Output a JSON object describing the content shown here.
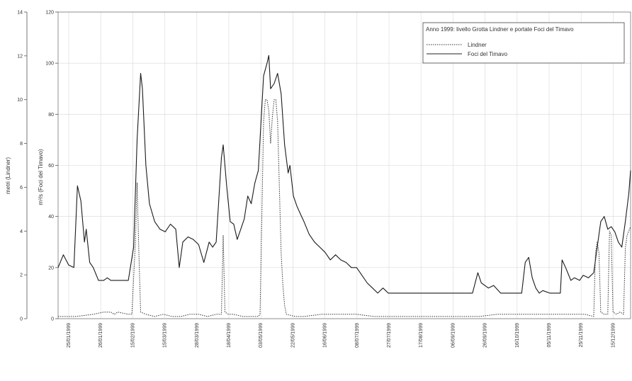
{
  "chart_data": {
    "type": "line",
    "legend": {
      "title": "Anno 1999: livello Grotta Lindner e portate Foci del Timavo",
      "placement": "top-right",
      "entries": [
        "Lindner",
        "Foci del Timavo"
      ]
    },
    "y_left": {
      "label": "metri (Lindner)",
      "ylim": [
        0,
        14
      ],
      "ticks": [
        0,
        2,
        4,
        6,
        8,
        10,
        12,
        14
      ]
    },
    "y_right": {
      "label": "m³/s (Foci del Timavo)",
      "ylim": [
        0,
        120
      ],
      "ticks": [
        0,
        20,
        40,
        60,
        80,
        100,
        120
      ]
    },
    "x_dates": [
      "25/01/1999",
      "26/01/1999",
      "15/02/1999",
      "15/03/1999",
      "28/03/1999",
      "18/04/1999",
      "03/05/1999",
      "22/05/1999",
      "16/06/1999",
      "08/07/1999",
      "27/07/1999",
      "17/08/1999",
      "06/09/1999",
      "26/09/1999",
      "16/10/1999",
      "05/11/1999",
      "25/11/1999",
      "15/12/1999"
    ],
    "grid": true,
    "series": [
      {
        "name": "Foci del Timavo",
        "axis": "right",
        "style": "solid",
        "points": [
          [
            0,
            20
          ],
          [
            3,
            25
          ],
          [
            6,
            21
          ],
          [
            9,
            20
          ],
          [
            11,
            52
          ],
          [
            13,
            46
          ],
          [
            15,
            30
          ],
          [
            16,
            35
          ],
          [
            18,
            22
          ],
          [
            20,
            20
          ],
          [
            23,
            15
          ],
          [
            26,
            15
          ],
          [
            28,
            16
          ],
          [
            30,
            15
          ],
          [
            40,
            15
          ],
          [
            43,
            28
          ],
          [
            45,
            70
          ],
          [
            47,
            96
          ],
          [
            48,
            90
          ],
          [
            50,
            60
          ],
          [
            52,
            45
          ],
          [
            55,
            38
          ],
          [
            58,
            35
          ],
          [
            61,
            34
          ],
          [
            64,
            37
          ],
          [
            67,
            35
          ],
          [
            69,
            20
          ],
          [
            71,
            30
          ],
          [
            74,
            32
          ],
          [
            77,
            31
          ],
          [
            80,
            29
          ],
          [
            83,
            22
          ],
          [
            86,
            30
          ],
          [
            88,
            28
          ],
          [
            90,
            30
          ],
          [
            93,
            63
          ],
          [
            94,
            68
          ],
          [
            96,
            52
          ],
          [
            98,
            38
          ],
          [
            100,
            37
          ],
          [
            102,
            31
          ],
          [
            104,
            35
          ],
          [
            106,
            39
          ],
          [
            108,
            48
          ],
          [
            110,
            45
          ],
          [
            112,
            53
          ],
          [
            114,
            58
          ],
          [
            115,
            70
          ],
          [
            117,
            95
          ],
          [
            119,
            100
          ],
          [
            120,
            103
          ],
          [
            121,
            90
          ],
          [
            123,
            92
          ],
          [
            125,
            96
          ],
          [
            127,
            88
          ],
          [
            129,
            68
          ],
          [
            131,
            57
          ],
          [
            132,
            60
          ],
          [
            134,
            48
          ],
          [
            136,
            44
          ],
          [
            138,
            41
          ],
          [
            140,
            38
          ],
          [
            143,
            33
          ],
          [
            146,
            30
          ],
          [
            149,
            28
          ],
          [
            152,
            26
          ],
          [
            155,
            23
          ],
          [
            158,
            25
          ],
          [
            161,
            23
          ],
          [
            164,
            22
          ],
          [
            167,
            20
          ],
          [
            170,
            20
          ],
          [
            173,
            17
          ],
          [
            176,
            14
          ],
          [
            179,
            12
          ],
          [
            182,
            10
          ],
          [
            185,
            12
          ],
          [
            188,
            10
          ],
          [
            192,
            10
          ],
          [
            220,
            10
          ],
          [
            228,
            10
          ],
          [
            236,
            10
          ],
          [
            239,
            18
          ],
          [
            241,
            14
          ],
          [
            243,
            13
          ],
          [
            245,
            12
          ],
          [
            248,
            13
          ],
          [
            252,
            10
          ],
          [
            260,
            10
          ],
          [
            264,
            10
          ],
          [
            266,
            22
          ],
          [
            268,
            24
          ],
          [
            270,
            16
          ],
          [
            272,
            12
          ],
          [
            274,
            10
          ],
          [
            276,
            11
          ],
          [
            280,
            10
          ],
          [
            286,
            10
          ],
          [
            287,
            23
          ],
          [
            289,
            20
          ],
          [
            292,
            15
          ],
          [
            294,
            16
          ],
          [
            297,
            15
          ],
          [
            299,
            17
          ],
          [
            302,
            16
          ],
          [
            305,
            18
          ],
          [
            307,
            28
          ],
          [
            309,
            38
          ],
          [
            311,
            40
          ],
          [
            313,
            35
          ],
          [
            315,
            36
          ],
          [
            317,
            34
          ],
          [
            319,
            30
          ],
          [
            321,
            28
          ],
          [
            323,
            38
          ],
          [
            325,
            49
          ],
          [
            326,
            58
          ]
        ]
      },
      {
        "name": "Lindner",
        "axis": "left",
        "style": "dotted",
        "points": [
          [
            0,
            0.1
          ],
          [
            10,
            0.1
          ],
          [
            20,
            0.2
          ],
          [
            26,
            0.3
          ],
          [
            30,
            0.3
          ],
          [
            32,
            0.2
          ],
          [
            34,
            0.3
          ],
          [
            40,
            0.2
          ],
          [
            42,
            0.2
          ],
          [
            44,
            3.5
          ],
          [
            45,
            6.2
          ],
          [
            46,
            3.0
          ],
          [
            47,
            0.3
          ],
          [
            50,
            0.2
          ],
          [
            55,
            0.1
          ],
          [
            60,
            0.2
          ],
          [
            65,
            0.1
          ],
          [
            70,
            0.1
          ],
          [
            75,
            0.2
          ],
          [
            80,
            0.2
          ],
          [
            85,
            0.1
          ],
          [
            90,
            0.2
          ],
          [
            93,
            0.2
          ],
          [
            94,
            3.8
          ],
          [
            95,
            0.3
          ],
          [
            97,
            0.2
          ],
          [
            100,
            0.2
          ],
          [
            105,
            0.1
          ],
          [
            110,
            0.1
          ],
          [
            114,
            0.1
          ],
          [
            115,
            0.2
          ],
          [
            116,
            4.5
          ],
          [
            117,
            9.0
          ],
          [
            118,
            10.0
          ],
          [
            119,
            10.0
          ],
          [
            120,
            9.5
          ],
          [
            121,
            8.0
          ],
          [
            122,
            9.2
          ],
          [
            123,
            10.0
          ],
          [
            124,
            10.0
          ],
          [
            125,
            9.0
          ],
          [
            126,
            6.0
          ],
          [
            127,
            3.0
          ],
          [
            128,
            1.5
          ],
          [
            129,
            0.6
          ],
          [
            130,
            0.2
          ],
          [
            135,
            0.1
          ],
          [
            140,
            0.1
          ],
          [
            150,
            0.2
          ],
          [
            160,
            0.2
          ],
          [
            170,
            0.2
          ],
          [
            180,
            0.1
          ],
          [
            190,
            0.1
          ],
          [
            200,
            0.1
          ],
          [
            210,
            0.1
          ],
          [
            220,
            0.1
          ],
          [
            230,
            0.1
          ],
          [
            240,
            0.1
          ],
          [
            250,
            0.2
          ],
          [
            260,
            0.2
          ],
          [
            270,
            0.2
          ],
          [
            280,
            0.2
          ],
          [
            290,
            0.2
          ],
          [
            300,
            0.2
          ],
          [
            305,
            0.1
          ],
          [
            306,
            3.0
          ],
          [
            307,
            3.5
          ],
          [
            308,
            3.0
          ],
          [
            309,
            0.3
          ],
          [
            311,
            0.2
          ],
          [
            313,
            0.2
          ],
          [
            314,
            4.0
          ],
          [
            315,
            3.8
          ],
          [
            316,
            0.3
          ],
          [
            318,
            0.2
          ],
          [
            320,
            0.3
          ],
          [
            322,
            0.2
          ],
          [
            323,
            3.2
          ],
          [
            324,
            3.8
          ],
          [
            325,
            4.0
          ],
          [
            326,
            4.2
          ]
        ]
      }
    ]
  }
}
